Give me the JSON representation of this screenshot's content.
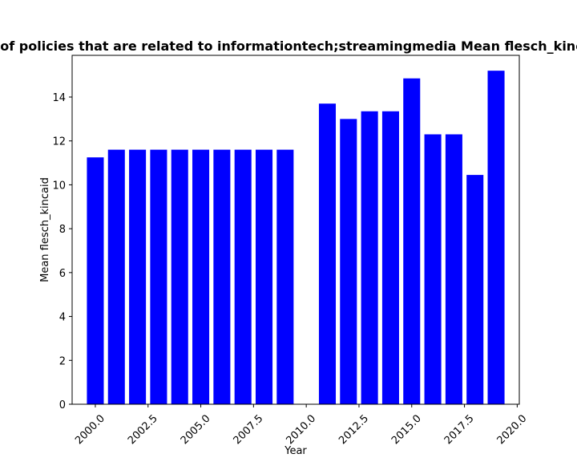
{
  "chart_data": {
    "type": "bar",
    "title": "Mean flesch_kincaid of policies that are related to informationtech;streamingmedia Mean flesch_kincaid in privacy policies",
    "xlabel": "Year",
    "ylabel": "Mean flesch_kincaid",
    "xlim": [
      1998.9,
      2020.1
    ],
    "ylim": [
      0,
      15.9
    ],
    "x_ticks": [
      "2000.0",
      "2002.5",
      "2005.0",
      "2007.5",
      "2010.0",
      "2012.5",
      "2015.0",
      "2017.5",
      "2020.0"
    ],
    "x_tick_values": [
      2000.0,
      2002.5,
      2005.0,
      2007.5,
      2010.0,
      2012.5,
      2015.0,
      2017.5,
      2020.0
    ],
    "y_ticks": [
      "0",
      "2",
      "4",
      "6",
      "8",
      "10",
      "12",
      "14"
    ],
    "y_tick_values": [
      0,
      2,
      4,
      6,
      8,
      10,
      12,
      14
    ],
    "bar_width": 0.8,
    "bar_color": "#0000ff",
    "grid": false,
    "x": [
      2000,
      2001,
      2002,
      2003,
      2004,
      2005,
      2006,
      2007,
      2008,
      2009,
      2011,
      2012,
      2013,
      2014,
      2015,
      2016,
      2017,
      2018,
      2019
    ],
    "values": [
      11.25,
      11.6,
      11.6,
      11.6,
      11.6,
      11.6,
      11.6,
      11.6,
      11.6,
      11.6,
      13.7,
      13.0,
      13.35,
      13.35,
      14.85,
      12.3,
      12.3,
      10.45,
      15.2
    ]
  }
}
